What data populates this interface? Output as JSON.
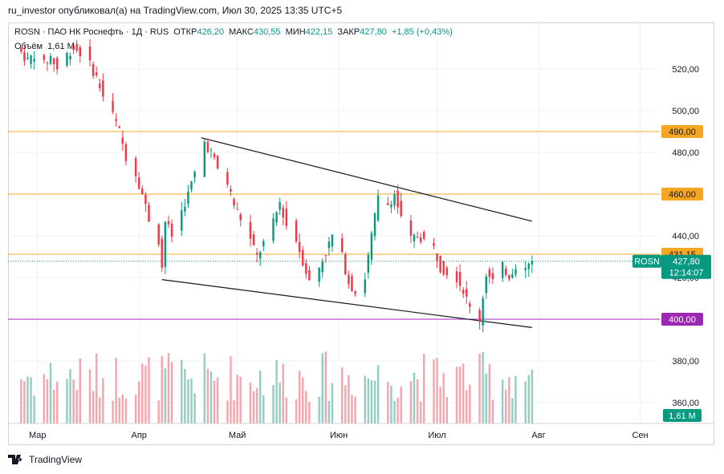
{
  "header": "ru_investor опубликовал(а) на TradingView.com, Июл 30, 2025 13:35 UTC+5",
  "legend": {
    "symbol": "ROSN · ПАО НК Роснефть · 1Д · RUS",
    "open_label": "ОТКР",
    "open": "426,20",
    "high_label": "МАКС",
    "high": "430,55",
    "low_label": "МИН",
    "low": "422,15",
    "close_label": "ЗАКР",
    "close": "427,80",
    "change": "+1,85 (+0,43%)",
    "volume_label": "Объём",
    "volume": "1,61 M"
  },
  "footer": "TradingView",
  "colors": {
    "up": "#089981",
    "down": "#f23645",
    "vol_up": "#91cfc4",
    "vol_down": "#f5a6ac",
    "orange": "#f5a623",
    "purple": "#9c27b0",
    "trend": "#131722"
  },
  "chart_data": {
    "type": "candlestick",
    "symbol": "ROSN",
    "timeframe": "1Д",
    "ylim": [
      350,
      530
    ],
    "y_ticks": [
      360,
      380,
      400,
      420,
      440,
      460,
      480,
      500,
      520
    ],
    "y_tick_labels": [
      "360,00",
      "380,00",
      "400,00",
      "420,00",
      "440,00",
      "460,00",
      "480,00",
      "500,00",
      "520,00"
    ],
    "x_tick_labels": [
      "Мар",
      "Апр",
      "Май",
      "Июн",
      "Июл",
      "Авг",
      "Сен"
    ],
    "month_starts": [
      "2025-03-01",
      "2025-04-01",
      "2025-05-01",
      "2025-06-01",
      "2025-07-01",
      "2025-08-01",
      "2025-09-01"
    ],
    "x_range": [
      "2025-02-20",
      "2025-09-07"
    ],
    "horizontal_levels": [
      {
        "value": 490,
        "label": "490,00",
        "color": "#f5a623"
      },
      {
        "value": 460,
        "label": "460,00",
        "color": "#f5a623"
      },
      {
        "value": 431.15,
        "label": "431,15",
        "color": "#f5a623"
      },
      {
        "value": 400,
        "label": "400,00",
        "color": "#9c27b0"
      }
    ],
    "last_price": {
      "value": 427.8,
      "symbol_label": "ROSN",
      "price_label": "427,80",
      "countdown": "12:14:07"
    },
    "volume_label": "1,61 M",
    "trendlines": [
      {
        "from": [
          "2025-04-20",
          487
        ],
        "to": [
          "2025-07-30",
          447
        ]
      },
      {
        "from": [
          "2025-04-08",
          419
        ],
        "to": [
          "2025-07-30",
          396
        ]
      }
    ],
    "closes": [
      {
        "date": "2025-02-24",
        "c": 528
      },
      {
        "date": "2025-02-26",
        "c": 524
      },
      {
        "date": "2025-02-28",
        "c": 527
      },
      {
        "date": "2025-03-03",
        "c": 522
      },
      {
        "date": "2025-03-05",
        "c": 526
      },
      {
        "date": "2025-03-07",
        "c": 520
      },
      {
        "date": "2025-03-10",
        "c": 527
      },
      {
        "date": "2025-03-12",
        "c": 530
      },
      {
        "date": "2025-03-14",
        "c": 528
      },
      {
        "date": "2025-03-17",
        "c": 522
      },
      {
        "date": "2025-03-19",
        "c": 516
      },
      {
        "date": "2025-03-21",
        "c": 507
      },
      {
        "date": "2025-03-24",
        "c": 498
      },
      {
        "date": "2025-03-26",
        "c": 490
      },
      {
        "date": "2025-03-28",
        "c": 478
      },
      {
        "date": "2025-03-31",
        "c": 470
      },
      {
        "date": "2025-04-02",
        "c": 460
      },
      {
        "date": "2025-04-04",
        "c": 448
      },
      {
        "date": "2025-04-07",
        "c": 438
      },
      {
        "date": "2025-04-08",
        "c": 425
      },
      {
        "date": "2025-04-09",
        "c": 447
      },
      {
        "date": "2025-04-11",
        "c": 440
      },
      {
        "date": "2025-04-14",
        "c": 452
      },
      {
        "date": "2025-04-16",
        "c": 460
      },
      {
        "date": "2025-04-18",
        "c": 470
      },
      {
        "date": "2025-04-21",
        "c": 485
      },
      {
        "date": "2025-04-23",
        "c": 480
      },
      {
        "date": "2025-04-25",
        "c": 472
      },
      {
        "date": "2025-04-28",
        "c": 465
      },
      {
        "date": "2025-04-30",
        "c": 455
      },
      {
        "date": "2025-05-05",
        "c": 438
      },
      {
        "date": "2025-05-07",
        "c": 430
      },
      {
        "date": "2025-05-12",
        "c": 446
      },
      {
        "date": "2025-05-14",
        "c": 456
      },
      {
        "date": "2025-05-16",
        "c": 445
      },
      {
        "date": "2025-05-19",
        "c": 438
      },
      {
        "date": "2025-05-21",
        "c": 428
      },
      {
        "date": "2025-05-23",
        "c": 418
      },
      {
        "date": "2025-05-26",
        "c": 425
      },
      {
        "date": "2025-05-28",
        "c": 432
      },
      {
        "date": "2025-05-30",
        "c": 440
      },
      {
        "date": "2025-06-02",
        "c": 430
      },
      {
        "date": "2025-06-04",
        "c": 418
      },
      {
        "date": "2025-06-06",
        "c": 413
      },
      {
        "date": "2025-06-09",
        "c": 420
      },
      {
        "date": "2025-06-11",
        "c": 440
      },
      {
        "date": "2025-06-13",
        "c": 458
      },
      {
        "date": "2025-06-16",
        "c": 455
      },
      {
        "date": "2025-06-18",
        "c": 460
      },
      {
        "date": "2025-06-20",
        "c": 448
      },
      {
        "date": "2025-06-23",
        "c": 438
      },
      {
        "date": "2025-06-25",
        "c": 440
      },
      {
        "date": "2025-06-27",
        "c": 438
      },
      {
        "date": "2025-06-30",
        "c": 434
      },
      {
        "date": "2025-07-02",
        "c": 425
      },
      {
        "date": "2025-07-04",
        "c": 423
      },
      {
        "date": "2025-07-07",
        "c": 420
      },
      {
        "date": "2025-07-09",
        "c": 414
      },
      {
        "date": "2025-07-11",
        "c": 405
      },
      {
        "date": "2025-07-14",
        "c": 400
      },
      {
        "date": "2025-07-16",
        "c": 422
      },
      {
        "date": "2025-07-18",
        "c": 418
      },
      {
        "date": "2025-07-21",
        "c": 425
      },
      {
        "date": "2025-07-23",
        "c": 421
      },
      {
        "date": "2025-07-25",
        "c": 426
      },
      {
        "date": "2025-07-28",
        "c": 424
      },
      {
        "date": "2025-07-29",
        "c": 426
      },
      {
        "date": "2025-07-30",
        "c": 427.8
      }
    ]
  }
}
